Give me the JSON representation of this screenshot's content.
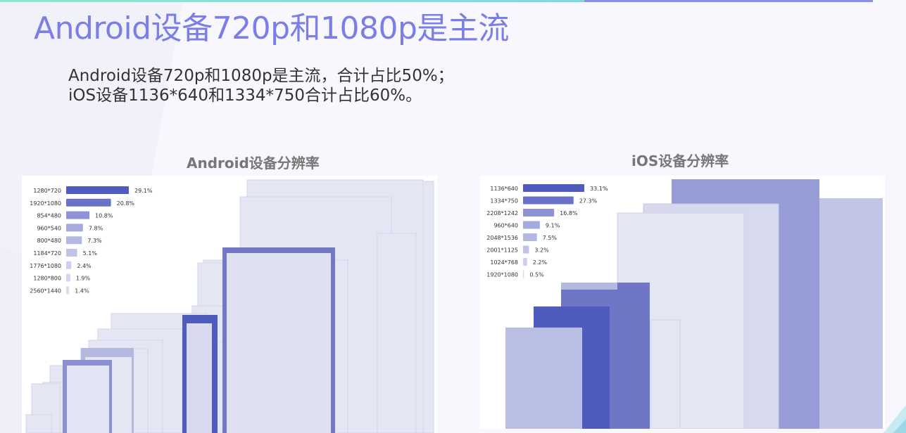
{
  "slide": {
    "title": "Android设备720p和1080p是主流",
    "summary_line1": "Android设备720p和1080p是主流，合计占比50%；",
    "summary_line2": "iOS设备1136*640和1334*750合计占比60%。"
  },
  "colors": {
    "title": "#7a7ee6",
    "accent_teal": "#8ee6d2",
    "accent_purple": "#8a8fe8"
  },
  "chart_data": [
    {
      "type": "bar",
      "orientation": "horizontal",
      "title": "Android设备分辨率",
      "categories": [
        "1280*720",
        "1920*1080",
        "854*480",
        "960*540",
        "800*480",
        "1184*720",
        "1776*1080",
        "1280*800",
        "2560*1440"
      ],
      "values": [
        29.1,
        20.8,
        10.8,
        7.8,
        7.3,
        5.1,
        2.4,
        1.9,
        1.4
      ],
      "value_labels": [
        "29.1%",
        "20.8%",
        "10.8%",
        "7.8%",
        "7.3%",
        "5.1%",
        "2.4%",
        "1.9%",
        "1.4%"
      ],
      "unit": "%"
    },
    {
      "type": "bar",
      "orientation": "horizontal",
      "title": "iOS设备分辨率",
      "categories": [
        "1136*640",
        "1334*750",
        "2208*1242",
        "960*640",
        "2048*1536",
        "2001*1125",
        "1024*768",
        "1920*1080"
      ],
      "values": [
        33.1,
        27.3,
        16.8,
        9.1,
        7.5,
        3.2,
        2.2,
        0.5
      ],
      "value_labels": [
        "33.1%",
        "27.3%",
        "16.8%",
        "9.1%",
        "7.5%",
        "3.2%",
        "2.2%",
        "0.5%"
      ],
      "unit": "%"
    }
  ]
}
